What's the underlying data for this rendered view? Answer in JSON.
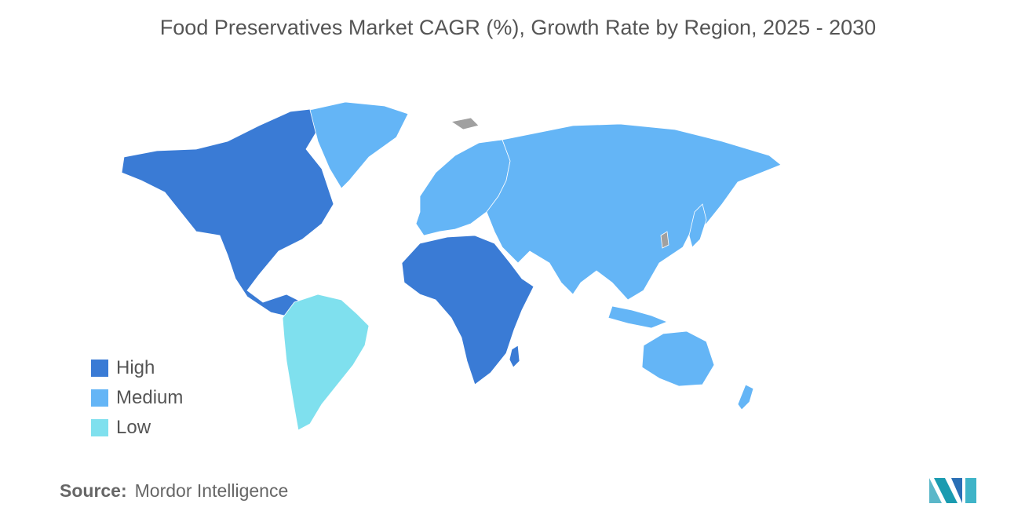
{
  "title": "Food Preservatives Market CAGR (%), Growth Rate by Region, 2025 - 2030",
  "legend": [
    {
      "label": "High",
      "color": "#3a7bd5"
    },
    {
      "label": "Medium",
      "color": "#64b5f6"
    },
    {
      "label": "Low",
      "color": "#7fe0ee"
    }
  ],
  "regions": {
    "north_america": "High",
    "africa": "High",
    "south_america": "Low",
    "europe": "Medium",
    "asia": "Medium",
    "middle_east": "Medium",
    "oceania": "Medium",
    "greenland": "Medium"
  },
  "no_data_color": "#a0a0a0",
  "source": {
    "label": "Source:",
    "value": "Mordor Intelligence"
  },
  "logo_icon": "mordor-intelligence-logo-icon"
}
